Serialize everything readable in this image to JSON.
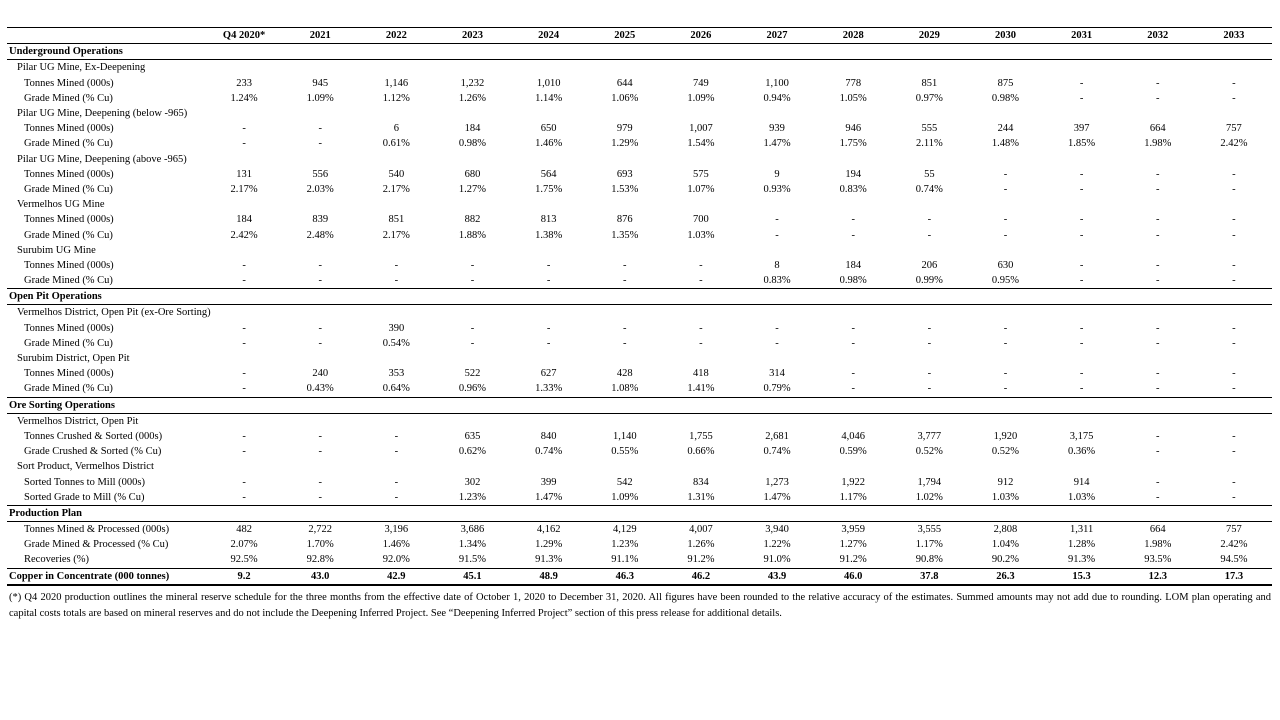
{
  "table": {
    "columns": [
      "Q4 2020*",
      "2021",
      "2022",
      "2023",
      "2024",
      "2025",
      "2026",
      "2027",
      "2028",
      "2029",
      "2030",
      "2031",
      "2032",
      "2033"
    ],
    "sections": [
      {
        "title": "Underground Operations",
        "groups": [
          {
            "title": "Pilar UG Mine, Ex-Deepening",
            "rows": [
              {
                "label": "Tonnes Mined (000s)",
                "values": [
                  "233",
                  "945",
                  "1,146",
                  "1,232",
                  "1,010",
                  "644",
                  "749",
                  "1,100",
                  "778",
                  "851",
                  "875",
                  "-",
                  "-",
                  "-"
                ]
              },
              {
                "label": "Grade Mined (% Cu)",
                "values": [
                  "1.24%",
                  "1.09%",
                  "1.12%",
                  "1.26%",
                  "1.14%",
                  "1.06%",
                  "1.09%",
                  "0.94%",
                  "1.05%",
                  "0.97%",
                  "0.98%",
                  "-",
                  "-",
                  "-"
                ]
              }
            ]
          },
          {
            "title": "Pilar UG Mine, Deepening (below -965)",
            "rows": [
              {
                "label": "Tonnes Mined (000s)",
                "values": [
                  "-",
                  "-",
                  "6",
                  "184",
                  "650",
                  "979",
                  "1,007",
                  "939",
                  "946",
                  "555",
                  "244",
                  "397",
                  "664",
                  "757"
                ]
              },
              {
                "label": "Grade Mined (% Cu)",
                "values": [
                  "-",
                  "-",
                  "0.61%",
                  "0.98%",
                  "1.46%",
                  "1.29%",
                  "1.54%",
                  "1.47%",
                  "1.75%",
                  "2.11%",
                  "1.48%",
                  "1.85%",
                  "1.98%",
                  "2.42%"
                ]
              }
            ]
          },
          {
            "title": "Pilar UG Mine, Deepening (above -965)",
            "rows": [
              {
                "label": "Tonnes Mined (000s)",
                "values": [
                  "131",
                  "556",
                  "540",
                  "680",
                  "564",
                  "693",
                  "575",
                  "9",
                  "194",
                  "55",
                  "-",
                  "-",
                  "-",
                  "-"
                ]
              },
              {
                "label": "Grade Mined (% Cu)",
                "values": [
                  "2.17%",
                  "2.03%",
                  "2.17%",
                  "1.27%",
                  "1.75%",
                  "1.53%",
                  "1.07%",
                  "0.93%",
                  "0.83%",
                  "0.74%",
                  "-",
                  "-",
                  "-",
                  "-"
                ]
              }
            ]
          },
          {
            "title": "Vermelhos UG Mine",
            "rows": [
              {
                "label": "Tonnes Mined (000s)",
                "values": [
                  "184",
                  "839",
                  "851",
                  "882",
                  "813",
                  "876",
                  "700",
                  "-",
                  "-",
                  "-",
                  "-",
                  "-",
                  "-",
                  "-"
                ]
              },
              {
                "label": "Grade Mined (% Cu)",
                "values": [
                  "2.42%",
                  "2.48%",
                  "2.17%",
                  "1.88%",
                  "1.38%",
                  "1.35%",
                  "1.03%",
                  "-",
                  "-",
                  "-",
                  "-",
                  "-",
                  "-",
                  "-"
                ]
              }
            ]
          },
          {
            "title": "Surubim UG Mine",
            "rows": [
              {
                "label": "Tonnes Mined (000s)",
                "values": [
                  "-",
                  "-",
                  "-",
                  "-",
                  "-",
                  "-",
                  "-",
                  "8",
                  "184",
                  "206",
                  "630",
                  "-",
                  "-",
                  "-"
                ]
              },
              {
                "label": "Grade Mined (% Cu)",
                "values": [
                  "-",
                  "-",
                  "-",
                  "-",
                  "-",
                  "-",
                  "-",
                  "0.83%",
                  "0.98%",
                  "0.99%",
                  "0.95%",
                  "-",
                  "-",
                  "-"
                ]
              }
            ]
          }
        ]
      },
      {
        "title": "Open Pit Operations",
        "groups": [
          {
            "title": "Vermelhos District, Open Pit (ex-Ore Sorting)",
            "rows": [
              {
                "label": "Tonnes Mined (000s)",
                "values": [
                  "-",
                  "-",
                  "390",
                  "-",
                  "-",
                  "-",
                  "-",
                  "-",
                  "-",
                  "-",
                  "-",
                  "-",
                  "-",
                  "-"
                ]
              },
              {
                "label": "Grade Mined (% Cu)",
                "values": [
                  "-",
                  "-",
                  "0.54%",
                  "-",
                  "-",
                  "-",
                  "-",
                  "-",
                  "-",
                  "-",
                  "-",
                  "-",
                  "-",
                  "-"
                ]
              }
            ]
          },
          {
            "title": "Surubim District, Open Pit",
            "rows": [
              {
                "label": "Tonnes Mined (000s)",
                "values": [
                  "-",
                  "240",
                  "353",
                  "522",
                  "627",
                  "428",
                  "418",
                  "314",
                  "-",
                  "-",
                  "-",
                  "-",
                  "-",
                  "-"
                ]
              },
              {
                "label": "Grade Mined (% Cu)",
                "values": [
                  "-",
                  "0.43%",
                  "0.64%",
                  "0.96%",
                  "1.33%",
                  "1.08%",
                  "1.41%",
                  "0.79%",
                  "-",
                  "-",
                  "-",
                  "-",
                  "-",
                  "-"
                ]
              }
            ]
          }
        ]
      },
      {
        "title": "Ore Sorting Operations",
        "groups": [
          {
            "title": "Vermelhos District, Open Pit",
            "rows": [
              {
                "label": "Tonnes Crushed & Sorted (000s)",
                "values": [
                  "-",
                  "-",
                  "-",
                  "635",
                  "840",
                  "1,140",
                  "1,755",
                  "2,681",
                  "4,046",
                  "3,777",
                  "1,920",
                  "3,175",
                  "-",
                  "-"
                ]
              },
              {
                "label": "Grade Crushed & Sorted  (% Cu)",
                "values": [
                  "-",
                  "-",
                  "-",
                  "0.62%",
                  "0.74%",
                  "0.55%",
                  "0.66%",
                  "0.74%",
                  "0.59%",
                  "0.52%",
                  "0.52%",
                  "0.36%",
                  "-",
                  "-"
                ]
              }
            ]
          },
          {
            "title": "Sort Product, Vermelhos District",
            "rows": [
              {
                "label": "Sorted Tonnes to Mill (000s)",
                "values": [
                  "-",
                  "-",
                  "-",
                  "302",
                  "399",
                  "542",
                  "834",
                  "1,273",
                  "1,922",
                  "1,794",
                  "912",
                  "914",
                  "-",
                  "-"
                ]
              },
              {
                "label": "Sorted Grade to Mill (% Cu)",
                "values": [
                  "-",
                  "-",
                  "-",
                  "1.23%",
                  "1.47%",
                  "1.09%",
                  "1.31%",
                  "1.47%",
                  "1.17%",
                  "1.02%",
                  "1.03%",
                  "1.03%",
                  "-",
                  "-"
                ]
              }
            ]
          }
        ]
      },
      {
        "title": "Production Plan",
        "groups": [
          {
            "rows": [
              {
                "label": "Tonnes Mined & Processed (000s)",
                "values": [
                  "482",
                  "2,722",
                  "3,196",
                  "3,686",
                  "4,162",
                  "4,129",
                  "4,007",
                  "3,940",
                  "3,959",
                  "3,555",
                  "2,808",
                  "1,311",
                  "664",
                  "757"
                ]
              },
              {
                "label": "Grade Mined & Processed (% Cu)",
                "values": [
                  "2.07%",
                  "1.70%",
                  "1.46%",
                  "1.34%",
                  "1.29%",
                  "1.23%",
                  "1.26%",
                  "1.22%",
                  "1.27%",
                  "1.17%",
                  "1.04%",
                  "1.28%",
                  "1.98%",
                  "2.42%"
                ]
              },
              {
                "label": "Recoveries (%)",
                "values": [
                  "92.5%",
                  "92.8%",
                  "92.0%",
                  "91.5%",
                  "91.3%",
                  "91.1%",
                  "91.2%",
                  "91.0%",
                  "91.2%",
                  "90.8%",
                  "90.2%",
                  "91.3%",
                  "93.5%",
                  "94.5%"
                ]
              }
            ]
          }
        ]
      }
    ],
    "total": {
      "label": "Copper in Concentrate (000 tonnes)",
      "values": [
        "9.2",
        "43.0",
        "42.9",
        "45.1",
        "48.9",
        "46.3",
        "46.2",
        "43.9",
        "46.0",
        "37.8",
        "26.3",
        "15.3",
        "12.3",
        "17.3"
      ]
    }
  },
  "footnote": "(*) Q4 2020 production outlines the mineral reserve schedule for the three months from the effective date of October 1, 2020 to December 31, 2020. All figures have been rounded to the relative accuracy of the estimates. Summed amounts may not add due to rounding. LOM plan operating and capital costs totals are based on mineral reserves and do not include the Deepening Inferred Project. See “Deepening Inferred Project” section of this press release for additional details."
}
